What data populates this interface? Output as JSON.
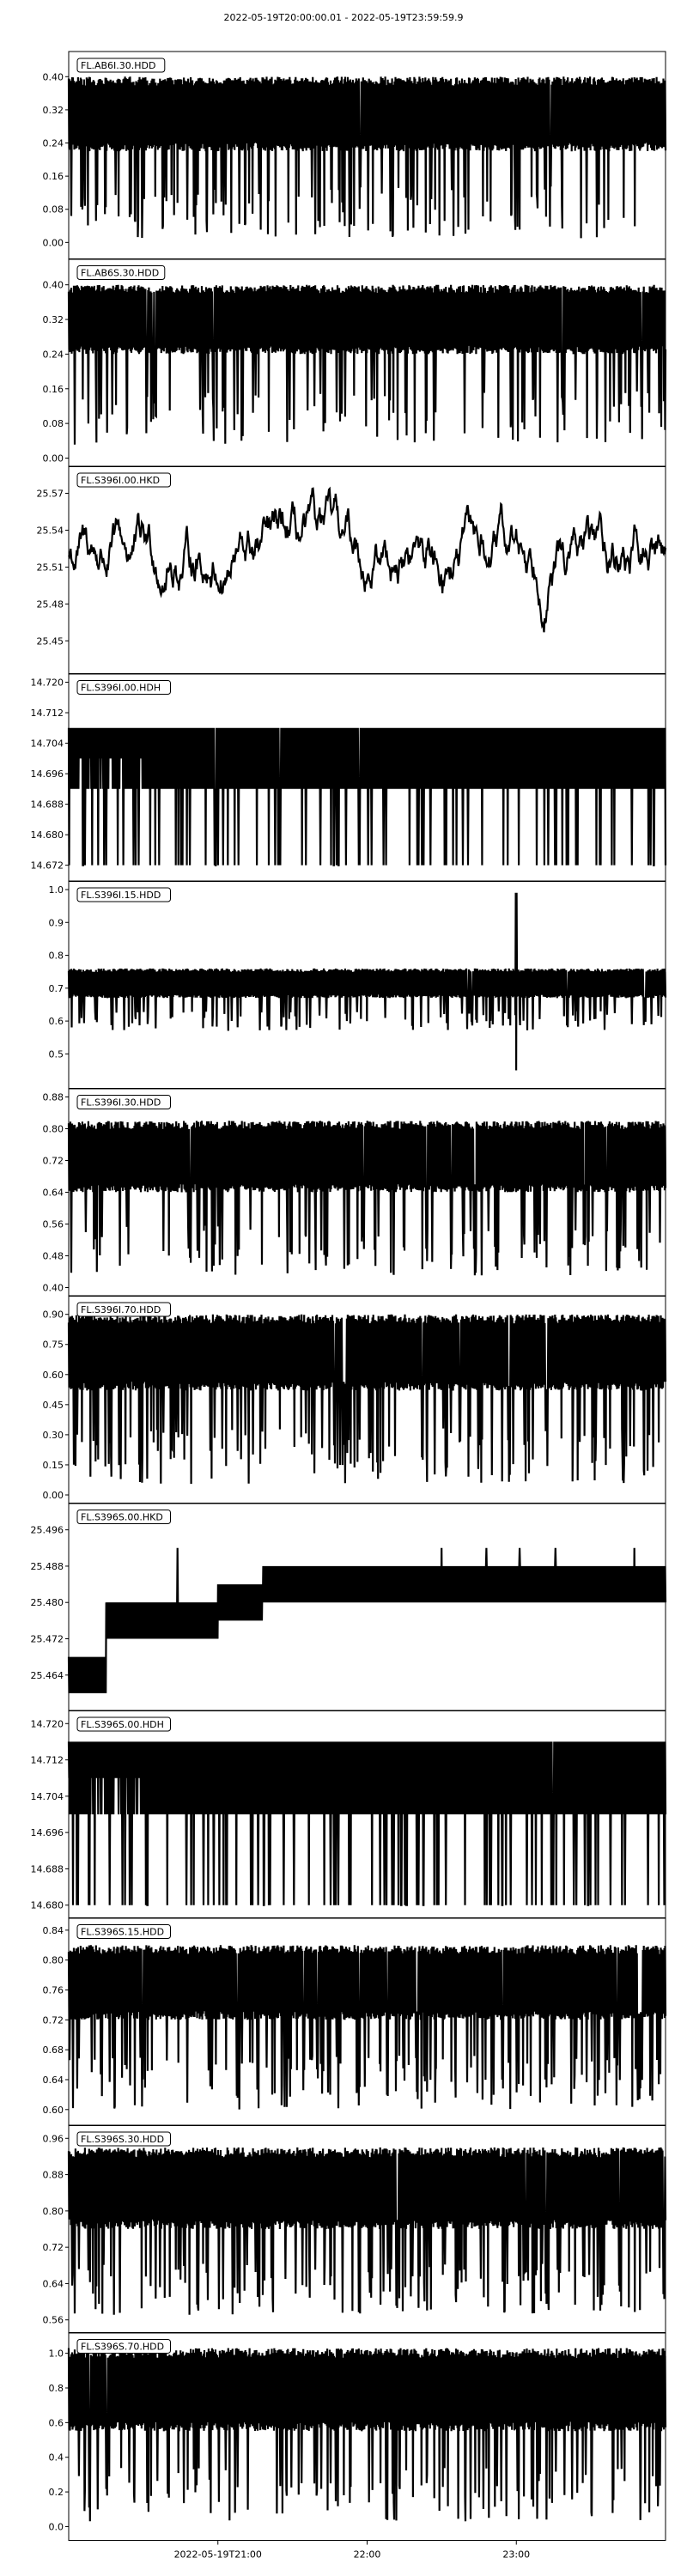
{
  "figure": {
    "title": "2022-05-19T20:00:00.01  -  2022-05-19T23:59:59.9",
    "x_tick_labels": [
      "2022-05-19T21:00",
      "22:00",
      "23:00"
    ],
    "style": {
      "trace_color": "#000000",
      "background": "#ffffff",
      "axes_color": "#000000"
    }
  },
  "chart_data": [
    {
      "type": "line",
      "label": "FL.AB6I.30.HDD",
      "x_hours": [
        20.0,
        24.0
      ],
      "ylim": [
        -0.02,
        0.44
      ],
      "yticks": [
        0.0,
        0.08,
        0.16,
        0.24,
        0.32,
        0.4
      ],
      "ytick_labels": [
        "0.00",
        "0.08",
        "0.16",
        "0.24",
        "0.32",
        "0.40"
      ],
      "signal": {
        "band_low": 0.22,
        "band_high": 0.4,
        "spike_min": 0.01,
        "spike_density": 0.35
      }
    },
    {
      "type": "line",
      "label": "FL.AB6S.30.HDD",
      "x_hours": [
        20.0,
        24.0
      ],
      "ylim": [
        0.0,
        0.44
      ],
      "yticks": [
        0.0,
        0.08,
        0.16,
        0.24,
        0.32,
        0.4
      ],
      "ytick_labels": [
        "0.00",
        "0.08",
        "0.16",
        "0.24",
        "0.32",
        "0.40"
      ],
      "signal": {
        "band_low": 0.24,
        "band_high": 0.4,
        "spike_min": 0.03,
        "spike_density": 0.35
      }
    },
    {
      "type": "line",
      "label": "FL.S396I.00.HKD",
      "x_hours": [
        20.0,
        24.0
      ],
      "ylim": [
        25.43,
        25.585
      ],
      "yticks": [
        25.45,
        25.48,
        25.51,
        25.54,
        25.57
      ],
      "ytick_labels": [
        "25.45",
        "25.48",
        "25.51",
        "25.54",
        "25.57"
      ],
      "signal": {
        "mode": "walk",
        "center": 25.52,
        "min": 25.44,
        "max": 25.58
      }
    },
    {
      "type": "line",
      "label": "FL.S396I.00.HDH",
      "x_hours": [
        20.0,
        24.0
      ],
      "ylim": [
        14.67,
        14.72
      ],
      "yticks": [
        14.672,
        14.68,
        14.688,
        14.696,
        14.704,
        14.712,
        14.72
      ],
      "ytick_labels": [
        "14.672",
        "14.680",
        "14.688",
        "14.696",
        "14.704",
        "14.712",
        "14.720"
      ],
      "signal": {
        "mode": "step",
        "levels": [
          14.692,
          14.7,
          14.708
        ],
        "spike_min": 14.672
      }
    },
    {
      "type": "line",
      "label": "FL.S396I.15.HDD",
      "x_hours": [
        20.0,
        24.0
      ],
      "ylim": [
        0.42,
        1.0
      ],
      "yticks": [
        0.5,
        0.6,
        0.7,
        0.8,
        0.9,
        1.0
      ],
      "ytick_labels": [
        "0.5",
        "0.6",
        "0.7",
        "0.8",
        "0.9",
        "1.0"
      ],
      "signal": {
        "band_low": 0.67,
        "band_high": 0.76,
        "spike_min": 0.57,
        "spike_density": 0.35,
        "event_hour": 23.0,
        "event_high": 0.99,
        "event_low": 0.45
      }
    },
    {
      "type": "line",
      "label": "FL.S396I.30.HDD",
      "x_hours": [
        20.0,
        24.0
      ],
      "ylim": [
        0.4,
        0.88
      ],
      "yticks": [
        0.4,
        0.48,
        0.56,
        0.64,
        0.72,
        0.8,
        0.88
      ],
      "ytick_labels": [
        "0.40",
        "0.48",
        "0.56",
        "0.64",
        "0.72",
        "0.80",
        "0.88"
      ],
      "signal": {
        "band_low": 0.64,
        "band_high": 0.82,
        "spike_min": 0.43,
        "spike_density": 0.4
      }
    },
    {
      "type": "line",
      "label": "FL.S396I.70.HDD",
      "x_hours": [
        20.0,
        24.0
      ],
      "ylim": [
        0.0,
        0.95
      ],
      "yticks": [
        0.0,
        0.15,
        0.3,
        0.45,
        0.6,
        0.75,
        0.9
      ],
      "ytick_labels": [
        "0.00",
        "0.15",
        "0.30",
        "0.45",
        "0.60",
        "0.75",
        "0.90"
      ],
      "signal": {
        "band_low": 0.52,
        "band_high": 0.9,
        "spike_min": 0.05,
        "spike_density": 0.4
      }
    },
    {
      "type": "line",
      "label": "FL.S396S.00.HKD",
      "x_hours": [
        20.0,
        24.0
      ],
      "ylim": [
        25.458,
        25.5
      ],
      "yticks": [
        25.464,
        25.472,
        25.48,
        25.488,
        25.496
      ],
      "ytick_labels": [
        "25.464",
        "25.472",
        "25.480",
        "25.488",
        "25.496"
      ],
      "signal": {
        "mode": "ladder",
        "steps": [
          {
            "until": 20.25,
            "low": 25.46,
            "high": 25.468
          },
          {
            "until": 21.0,
            "low": 25.472,
            "high": 25.48
          },
          {
            "until": 21.3,
            "low": 25.476,
            "high": 25.484
          },
          {
            "until": 24.0,
            "low": 25.48,
            "high": 25.488
          }
        ],
        "spike_high": 25.492
      }
    },
    {
      "type": "line",
      "label": "FL.S396S.00.HDH",
      "x_hours": [
        20.0,
        24.0
      ],
      "ylim": [
        14.679,
        14.721
      ],
      "yticks": [
        14.68,
        14.688,
        14.696,
        14.704,
        14.712,
        14.72
      ],
      "ytick_labels": [
        "14.680",
        "14.688",
        "14.696",
        "14.704",
        "14.712",
        "14.720"
      ],
      "signal": {
        "mode": "step",
        "levels": [
          14.7,
          14.708,
          14.716
        ],
        "spike_min": 14.68
      }
    },
    {
      "type": "line",
      "label": "FL.S396S.15.HDD",
      "x_hours": [
        20.0,
        24.0
      ],
      "ylim": [
        0.59,
        0.845
      ],
      "yticks": [
        0.6,
        0.64,
        0.68,
        0.72,
        0.76,
        0.8,
        0.84
      ],
      "ytick_labels": [
        "0.60",
        "0.64",
        "0.68",
        "0.72",
        "0.76",
        "0.80",
        "0.84"
      ],
      "signal": {
        "band_low": 0.72,
        "band_high": 0.82,
        "spike_min": 0.6,
        "spike_density": 0.4
      }
    },
    {
      "type": "line",
      "label": "FL.S396S.30.HDD",
      "x_hours": [
        20.0,
        24.0
      ],
      "ylim": [
        0.55,
        0.97
      ],
      "yticks": [
        0.56,
        0.64,
        0.72,
        0.8,
        0.88,
        0.96
      ],
      "ytick_labels": [
        "0.56",
        "0.64",
        "0.72",
        "0.80",
        "0.88",
        "0.96"
      ],
      "signal": {
        "band_low": 0.76,
        "band_high": 0.94,
        "spike_min": 0.57,
        "spike_density": 0.4
      }
    },
    {
      "type": "line",
      "label": "FL.S396S.70.HDD",
      "x_hours": [
        20.0,
        24.0
      ],
      "ylim": [
        -0.03,
        1.07
      ],
      "yticks": [
        0.0,
        0.2,
        0.4,
        0.6,
        0.8,
        1.0
      ],
      "ytick_labels": [
        "0.0",
        "0.2",
        "0.4",
        "0.6",
        "0.8",
        "1.0"
      ],
      "signal": {
        "band_low": 0.55,
        "band_high": 1.03,
        "spike_min": 0.03,
        "spike_density": 0.4
      }
    }
  ]
}
